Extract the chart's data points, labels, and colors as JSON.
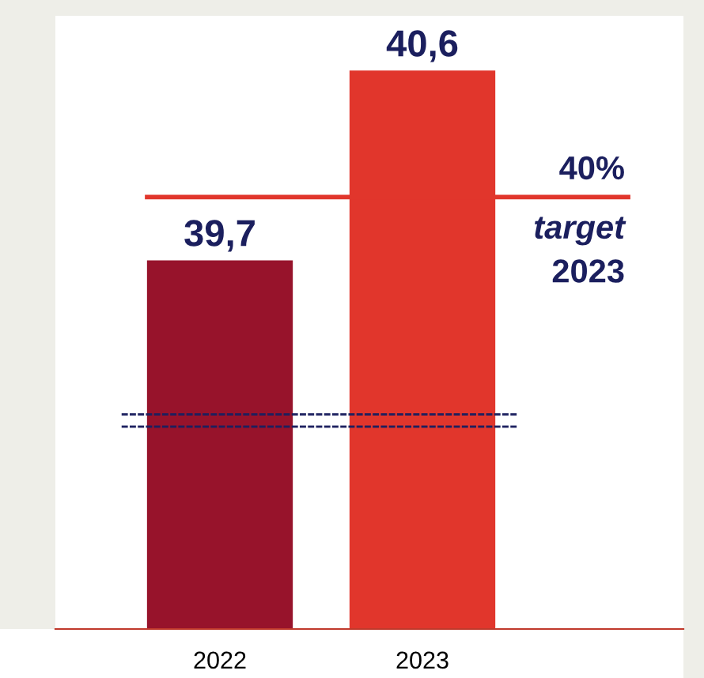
{
  "chart_data": {
    "type": "bar",
    "categories": [
      "2022",
      "2023"
    ],
    "values": [
      39.7,
      40.6
    ],
    "colors": [
      "#97132b",
      "#e1362c"
    ],
    "value_labels": [
      "39,7",
      "40,6"
    ],
    "ref_lines": [
      {
        "axis": "y",
        "value": 40,
        "label": "40%",
        "color": "#e1362c"
      }
    ],
    "annotations": [
      "target",
      "2023"
    ],
    "grid": false,
    "legend": false
  }
}
